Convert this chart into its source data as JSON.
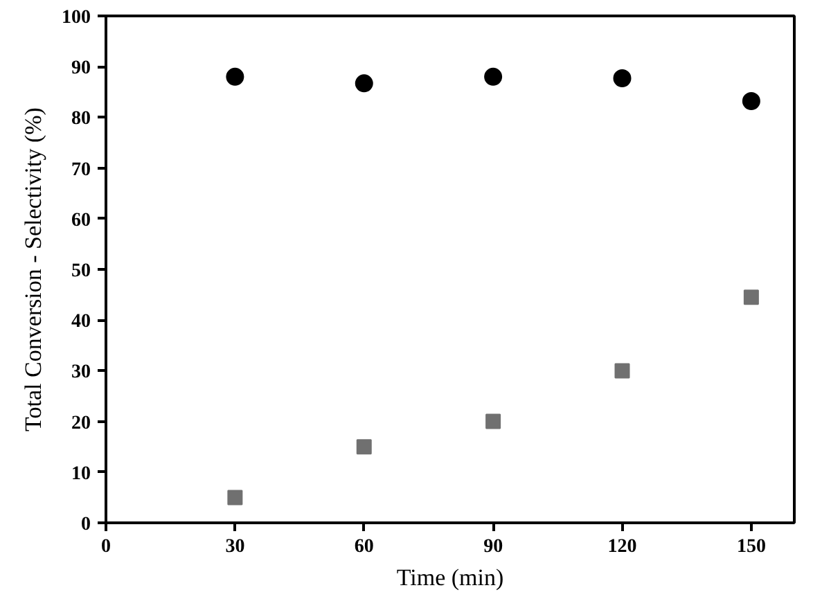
{
  "chart_data": {
    "type": "scatter",
    "xlabel": "Time (min)",
    "ylabel": "Total Conversion - Selectivity (%)",
    "x": [
      30,
      60,
      90,
      120,
      150
    ],
    "series": [
      {
        "color": "#000000",
        "marker": "circle",
        "values": [
          88,
          86.7,
          88,
          87.7,
          83.2
        ]
      },
      {
        "color": "#707070",
        "marker": "square",
        "values": [
          5,
          15,
          20,
          30,
          44.5
        ]
      }
    ],
    "xlim": [
      0,
      160
    ],
    "ylim": [
      0,
      100
    ],
    "xticks": [
      0,
      30,
      60,
      90,
      120,
      150
    ],
    "yticks": [
      0,
      10,
      20,
      30,
      40,
      50,
      60,
      70,
      80,
      90,
      100
    ],
    "grid": false
  }
}
